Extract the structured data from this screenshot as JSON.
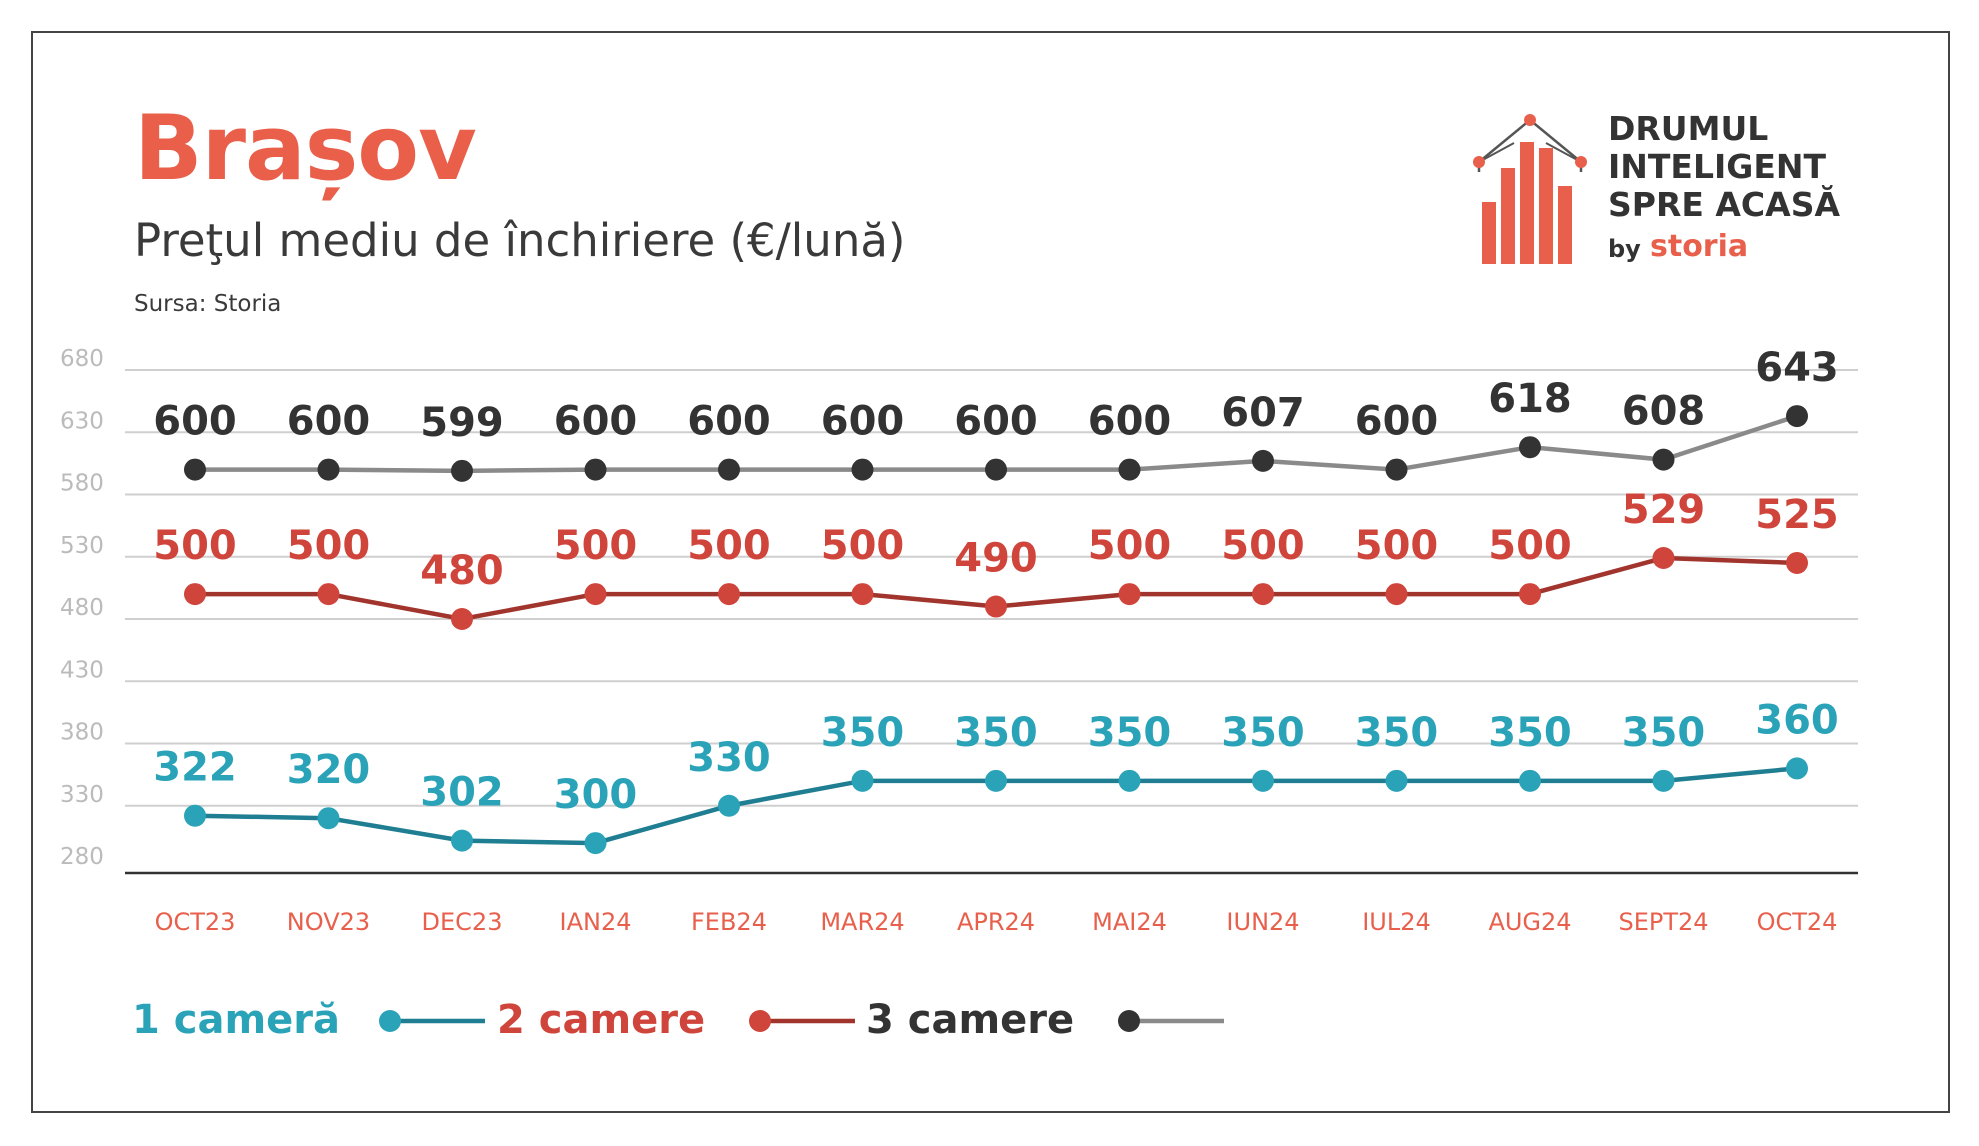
{
  "colors": {
    "accent": "#e8604c",
    "title": "#ea5f4a",
    "text": "#3a3a3a",
    "grid": "#cfcfcf",
    "axis": "#333333",
    "tick": "#bbbbbb",
    "month": "#e8604c",
    "one_room": "#2aa3b8",
    "one_room_line": "#1f7e92",
    "two_rooms": "#d0453b",
    "two_rooms_line": "#a1352d",
    "three_rooms": "#333333",
    "three_rooms_line": "#8a8a8a"
  },
  "header": {
    "title": "Brașov",
    "subtitle": "Preţul mediu de închiriere (€/lună)",
    "source": "Sursa: Storia"
  },
  "logo": {
    "line1": "DRUMUL",
    "line2": "INTELIGENT",
    "line3": "SPRE ACASĂ",
    "by": "by",
    "brand": "storia"
  },
  "chart_data": {
    "type": "line",
    "categories": [
      "OCT23",
      "NOV23",
      "DEC23",
      "IAN24",
      "FEB24",
      "MAR24",
      "APR24",
      "MAI24",
      "IUN24",
      "IUL24",
      "AUG24",
      "SEPT24",
      "OCT24"
    ],
    "yticks": [
      280,
      330,
      380,
      430,
      480,
      530,
      580,
      630,
      680
    ],
    "ylim": [
      280,
      680
    ],
    "grid": true,
    "series": [
      {
        "name": "1 cameră",
        "key": "one_room",
        "values": [
          322,
          320,
          302,
          300,
          330,
          350,
          350,
          350,
          350,
          350,
          350,
          350,
          360
        ]
      },
      {
        "name": "2 camere",
        "key": "two_rooms",
        "values": [
          500,
          500,
          480,
          500,
          500,
          500,
          490,
          500,
          500,
          500,
          500,
          529,
          525
        ]
      },
      {
        "name": "3 camere",
        "key": "three_rooms",
        "values": [
          600,
          600,
          599,
          600,
          600,
          600,
          600,
          600,
          607,
          600,
          618,
          608,
          643
        ]
      }
    ]
  }
}
